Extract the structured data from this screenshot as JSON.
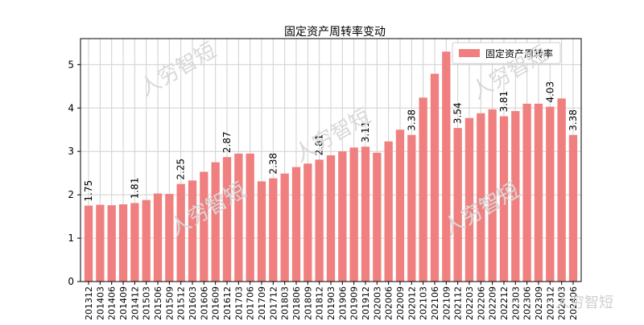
{
  "watermark": "人穷智短",
  "chart_data": {
    "type": "bar",
    "title": "固定资产周转率变动",
    "xlabel": "",
    "ylabel": "",
    "legend": {
      "label": "固定资产周转率",
      "position": "top-right"
    },
    "bar_color": "#f08080",
    "ylim": [
      0,
      5.6
    ],
    "yticks": [
      0,
      1,
      2,
      3,
      4,
      5
    ],
    "grid": true,
    "categories": [
      "201312",
      "201403",
      "201406",
      "201409",
      "201412",
      "201503",
      "201506",
      "201509",
      "201512",
      "201603",
      "201606",
      "201609",
      "201612",
      "201703",
      "201706",
      "201709",
      "201712",
      "201803",
      "201806",
      "201809",
      "201812",
      "201903",
      "201906",
      "201909",
      "201912",
      "202003",
      "202006",
      "202009",
      "202012",
      "202103",
      "202106",
      "202109",
      "202112",
      "202203",
      "202206",
      "202209",
      "202212",
      "202303",
      "202306",
      "202309",
      "202312",
      "202403",
      "202406"
    ],
    "values": [
      1.75,
      1.77,
      1.76,
      1.78,
      1.81,
      1.88,
      2.03,
      2.02,
      2.25,
      2.33,
      2.53,
      2.75,
      2.87,
      2.95,
      2.95,
      2.31,
      2.38,
      2.49,
      2.64,
      2.72,
      2.81,
      2.91,
      3.0,
      3.09,
      3.11,
      2.97,
      3.23,
      3.5,
      3.38,
      4.24,
      4.79,
      5.3,
      3.54,
      3.77,
      3.88,
      3.97,
      3.81,
      3.93,
      4.1,
      4.1,
      4.03,
      4.22,
      3.38
    ],
    "data_labels": [
      {
        "index": 0,
        "text": "1.75"
      },
      {
        "index": 4,
        "text": "1.81"
      },
      {
        "index": 8,
        "text": "2.25"
      },
      {
        "index": 12,
        "text": "2.87"
      },
      {
        "index": 16,
        "text": "2.38"
      },
      {
        "index": 20,
        "text": "2.81"
      },
      {
        "index": 24,
        "text": "3.11"
      },
      {
        "index": 28,
        "text": "3.38"
      },
      {
        "index": 32,
        "text": "3.54"
      },
      {
        "index": 36,
        "text": "3.81"
      },
      {
        "index": 40,
        "text": "4.03"
      },
      {
        "index": 42,
        "text": "3.38"
      }
    ]
  }
}
